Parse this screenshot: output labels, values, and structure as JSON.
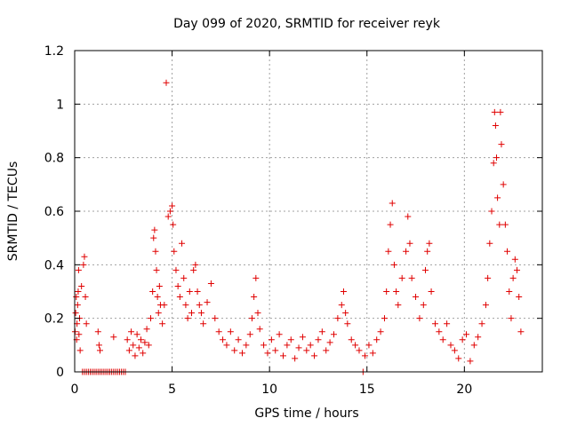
{
  "chart_data": {
    "type": "scatter",
    "title": "Day 099 of 2020, SRMTID for receiver reyk",
    "xlabel": "GPS time / hours",
    "ylabel": "SRMTID / TECUs",
    "xlim": [
      0,
      24
    ],
    "ylim": [
      0,
      1.2
    ],
    "x_ticks": [
      {
        "value": 0,
        "label": "0"
      },
      {
        "value": 5,
        "label": "5"
      },
      {
        "value": 10,
        "label": "10"
      },
      {
        "value": 15,
        "label": "15"
      },
      {
        "value": 20,
        "label": "20"
      }
    ],
    "y_ticks": [
      {
        "value": 0,
        "label": "0"
      },
      {
        "value": 0.2,
        "label": "0.2"
      },
      {
        "value": 0.4,
        "label": "0.4"
      },
      {
        "value": 0.6,
        "label": "0.6"
      },
      {
        "value": 0.8,
        "label": "0.8"
      },
      {
        "value": 1.0,
        "label": "1"
      },
      {
        "value": 1.2,
        "label": "1.2"
      }
    ],
    "grid": true,
    "marker": "plus",
    "series": [
      {
        "name": "SRMTID",
        "color": "#e00000",
        "points": [
          [
            0.02,
            0.15
          ],
          [
            0.05,
            0.22
          ],
          [
            0.08,
            0.28
          ],
          [
            0.1,
            0.12
          ],
          [
            0.12,
            0.18
          ],
          [
            0.15,
            0.25
          ],
          [
            0.18,
            0.3
          ],
          [
            0.2,
            0.38
          ],
          [
            0.22,
            0.14
          ],
          [
            0.25,
            0.2
          ],
          [
            0.28,
            0.08
          ],
          [
            0.4,
            0.0
          ],
          [
            0.5,
            0.0
          ],
          [
            0.6,
            0.0
          ],
          [
            0.7,
            0.0
          ],
          [
            0.8,
            0.0
          ],
          [
            0.9,
            0.0
          ],
          [
            1.0,
            0.0
          ],
          [
            1.1,
            0.0
          ],
          [
            1.2,
            0.0
          ],
          [
            1.3,
            0.0
          ],
          [
            1.4,
            0.0
          ],
          [
            1.5,
            0.0
          ],
          [
            1.6,
            0.0
          ],
          [
            1.7,
            0.0
          ],
          [
            1.8,
            0.0
          ],
          [
            1.9,
            0.0
          ],
          [
            2.0,
            0.0
          ],
          [
            2.1,
            0.0
          ],
          [
            2.2,
            0.0
          ],
          [
            2.3,
            0.0
          ],
          [
            2.4,
            0.0
          ],
          [
            2.5,
            0.0
          ],
          [
            2.6,
            0.0
          ],
          [
            0.35,
            0.32
          ],
          [
            0.45,
            0.4
          ],
          [
            0.5,
            0.43
          ],
          [
            0.55,
            0.28
          ],
          [
            0.6,
            0.18
          ],
          [
            1.2,
            0.15
          ],
          [
            1.25,
            0.1
          ],
          [
            1.3,
            0.08
          ],
          [
            2.0,
            0.13
          ],
          [
            2.7,
            0.12
          ],
          [
            2.8,
            0.08
          ],
          [
            2.9,
            0.15
          ],
          [
            3.0,
            0.1
          ],
          [
            3.1,
            0.06
          ],
          [
            3.2,
            0.14
          ],
          [
            3.3,
            0.09
          ],
          [
            3.4,
            0.12
          ],
          [
            3.5,
            0.07
          ],
          [
            3.6,
            0.11
          ],
          [
            3.7,
            0.16
          ],
          [
            3.8,
            0.1
          ],
          [
            3.9,
            0.2
          ],
          [
            4.0,
            0.3
          ],
          [
            4.05,
            0.5
          ],
          [
            4.1,
            0.53
          ],
          [
            4.15,
            0.45
          ],
          [
            4.2,
            0.38
          ],
          [
            4.25,
            0.28
          ],
          [
            4.3,
            0.22
          ],
          [
            4.35,
            0.32
          ],
          [
            4.4,
            0.25
          ],
          [
            4.5,
            0.18
          ],
          [
            4.6,
            0.25
          ],
          [
            4.7,
            1.08
          ],
          [
            4.8,
            0.58
          ],
          [
            4.9,
            0.6
          ],
          [
            5.0,
            0.62
          ],
          [
            5.05,
            0.55
          ],
          [
            5.1,
            0.45
          ],
          [
            5.2,
            0.38
          ],
          [
            5.3,
            0.32
          ],
          [
            5.4,
            0.28
          ],
          [
            5.5,
            0.48
          ],
          [
            5.6,
            0.35
          ],
          [
            5.7,
            0.25
          ],
          [
            5.8,
            0.2
          ],
          [
            5.9,
            0.3
          ],
          [
            6.0,
            0.22
          ],
          [
            6.1,
            0.38
          ],
          [
            6.2,
            0.4
          ],
          [
            6.3,
            0.3
          ],
          [
            6.4,
            0.25
          ],
          [
            6.5,
            0.22
          ],
          [
            6.6,
            0.18
          ],
          [
            6.8,
            0.26
          ],
          [
            7.0,
            0.33
          ],
          [
            7.2,
            0.2
          ],
          [
            7.4,
            0.15
          ],
          [
            7.6,
            0.12
          ],
          [
            7.8,
            0.1
          ],
          [
            8.0,
            0.15
          ],
          [
            8.2,
            0.08
          ],
          [
            8.4,
            0.12
          ],
          [
            8.6,
            0.07
          ],
          [
            8.8,
            0.1
          ],
          [
            9.0,
            0.14
          ],
          [
            9.1,
            0.2
          ],
          [
            9.2,
            0.28
          ],
          [
            9.3,
            0.35
          ],
          [
            9.4,
            0.22
          ],
          [
            9.5,
            0.16
          ],
          [
            9.7,
            0.1
          ],
          [
            9.9,
            0.07
          ],
          [
            10.1,
            0.12
          ],
          [
            10.3,
            0.08
          ],
          [
            10.5,
            0.14
          ],
          [
            10.7,
            0.06
          ],
          [
            10.9,
            0.1
          ],
          [
            11.1,
            0.12
          ],
          [
            11.3,
            0.05
          ],
          [
            11.5,
            0.09
          ],
          [
            11.7,
            0.13
          ],
          [
            11.9,
            0.08
          ],
          [
            12.1,
            0.1
          ],
          [
            12.3,
            0.06
          ],
          [
            12.5,
            0.12
          ],
          [
            12.7,
            0.15
          ],
          [
            12.9,
            0.08
          ],
          [
            13.1,
            0.11
          ],
          [
            13.3,
            0.14
          ],
          [
            13.5,
            0.2
          ],
          [
            13.7,
            0.25
          ],
          [
            13.8,
            0.3
          ],
          [
            13.9,
            0.22
          ],
          [
            14.0,
            0.18
          ],
          [
            14.2,
            0.12
          ],
          [
            14.4,
            0.1
          ],
          [
            14.6,
            0.08
          ],
          [
            14.8,
            0.0
          ],
          [
            14.9,
            0.06
          ],
          [
            15.1,
            0.1
          ],
          [
            15.3,
            0.07
          ],
          [
            15.5,
            0.12
          ],
          [
            15.7,
            0.15
          ],
          [
            15.9,
            0.2
          ],
          [
            16.0,
            0.3
          ],
          [
            16.1,
            0.45
          ],
          [
            16.2,
            0.55
          ],
          [
            16.3,
            0.63
          ],
          [
            16.4,
            0.4
          ],
          [
            16.5,
            0.3
          ],
          [
            16.6,
            0.25
          ],
          [
            16.8,
            0.35
          ],
          [
            17.0,
            0.45
          ],
          [
            17.1,
            0.58
          ],
          [
            17.2,
            0.48
          ],
          [
            17.3,
            0.35
          ],
          [
            17.5,
            0.28
          ],
          [
            17.7,
            0.2
          ],
          [
            17.9,
            0.25
          ],
          [
            18.0,
            0.38
          ],
          [
            18.1,
            0.45
          ],
          [
            18.2,
            0.48
          ],
          [
            18.3,
            0.3
          ],
          [
            18.5,
            0.18
          ],
          [
            18.7,
            0.15
          ],
          [
            18.9,
            0.12
          ],
          [
            19.1,
            0.18
          ],
          [
            19.3,
            0.1
          ],
          [
            19.5,
            0.08
          ],
          [
            19.7,
            0.05
          ],
          [
            19.9,
            0.12
          ],
          [
            20.1,
            0.14
          ],
          [
            20.3,
            0.04
          ],
          [
            20.5,
            0.1
          ],
          [
            20.7,
            0.13
          ],
          [
            20.9,
            0.18
          ],
          [
            21.1,
            0.25
          ],
          [
            21.2,
            0.35
          ],
          [
            21.3,
            0.48
          ],
          [
            21.4,
            0.6
          ],
          [
            21.5,
            0.78
          ],
          [
            21.55,
            0.97
          ],
          [
            21.6,
            0.92
          ],
          [
            21.65,
            0.8
          ],
          [
            21.7,
            0.65
          ],
          [
            21.8,
            0.55
          ],
          [
            21.85,
            0.97
          ],
          [
            21.9,
            0.85
          ],
          [
            22.0,
            0.7
          ],
          [
            22.1,
            0.55
          ],
          [
            22.2,
            0.45
          ],
          [
            22.3,
            0.3
          ],
          [
            22.4,
            0.2
          ],
          [
            22.5,
            0.35
          ],
          [
            22.6,
            0.42
          ],
          [
            22.7,
            0.38
          ],
          [
            22.8,
            0.28
          ],
          [
            22.9,
            0.15
          ]
        ]
      }
    ]
  }
}
